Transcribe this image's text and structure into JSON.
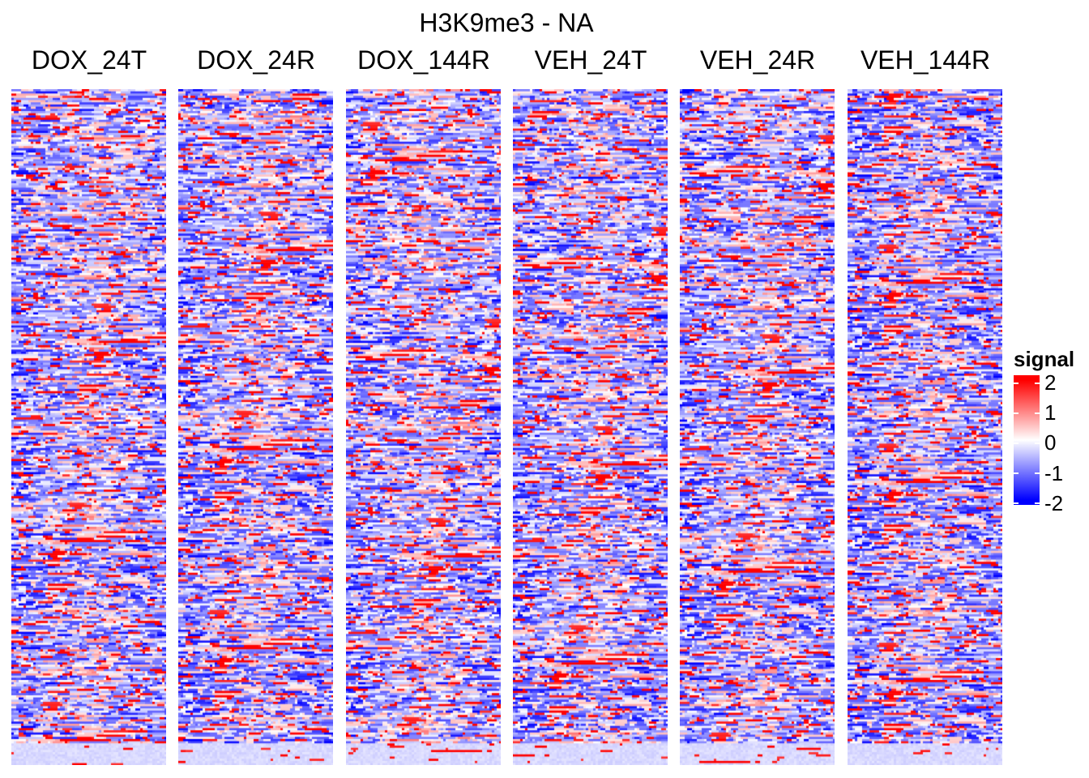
{
  "chart_data": {
    "type": "heatmap",
    "title": "H3K9me3 - NA",
    "panels": [
      "DOX_24T",
      "DOX_24R",
      "DOX_144R",
      "VEH_24T",
      "VEH_24R",
      "VEH_144R"
    ],
    "legend": {
      "title": "signal",
      "ticks": [
        "2",
        "1",
        "0",
        "-1",
        "-2"
      ],
      "range": [
        -2,
        2
      ],
      "colors": {
        "low": "#0000ff",
        "mid": "#ffffff",
        "high": "#ff0000"
      }
    },
    "notes_values": "signal matrix per panel (rows = regions, columns = positions); values between -2 and 2, enriched near panel center"
  }
}
